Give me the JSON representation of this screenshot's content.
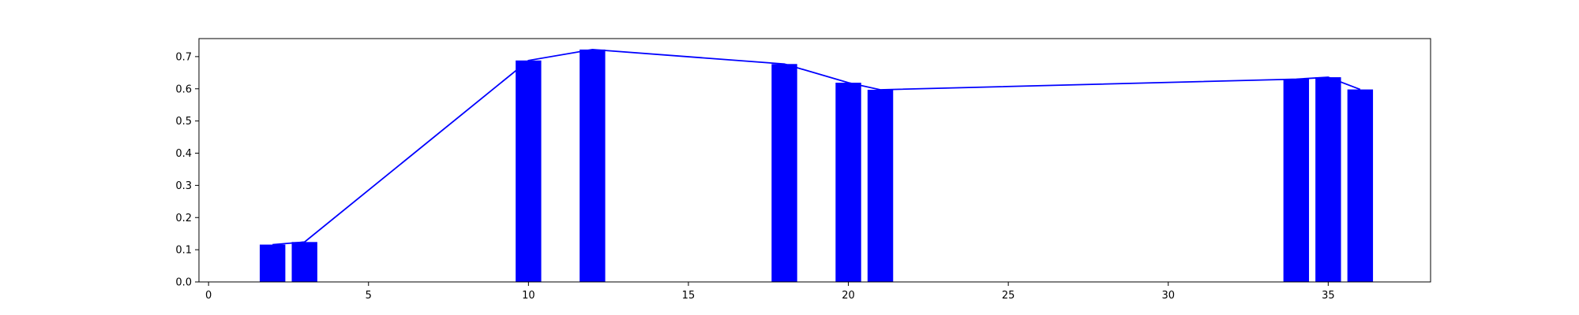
{
  "chart_data": {
    "type": "bar",
    "title": "",
    "xlabel": "",
    "ylabel": "",
    "xlim": [
      -0.3,
      38.2
    ],
    "ylim": [
      0.0,
      0.756
    ],
    "grid": false,
    "x_ticks": [
      0,
      5,
      10,
      15,
      20,
      25,
      30,
      35
    ],
    "y_ticks": [
      0.0,
      0.1,
      0.2,
      0.3,
      0.4,
      0.5,
      0.6,
      0.7
    ],
    "bar_width": 0.8,
    "x": [
      2,
      3,
      10,
      12,
      18,
      20,
      21,
      34,
      35,
      36
    ],
    "values": [
      0.116,
      0.124,
      0.688,
      0.722,
      0.677,
      0.619,
      0.597,
      0.63,
      0.636,
      0.598
    ],
    "line_values": [
      0.116,
      0.124,
      0.688,
      0.722,
      0.677,
      0.619,
      0.597,
      0.63,
      0.636,
      0.598
    ],
    "colors": {
      "bar": "#0000ff",
      "line": "#0000ff",
      "axes": "#000000",
      "background": "#ffffff"
    }
  }
}
